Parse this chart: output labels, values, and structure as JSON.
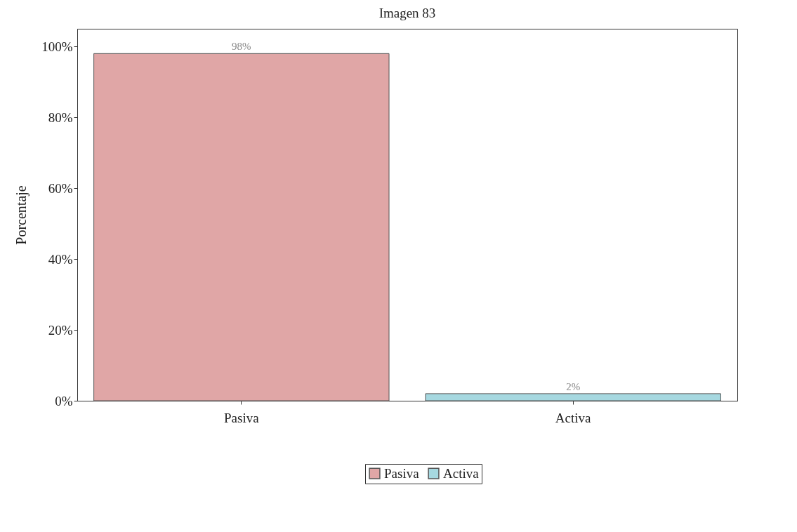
{
  "chart_data": {
    "type": "bar",
    "title": "Imagen 83",
    "ylabel": "Porcentaje",
    "categories": [
      "Pasiva",
      "Activa"
    ],
    "series": [
      {
        "name": "Pasiva",
        "color": "#e0a6a6",
        "values": [
          98,
          null
        ],
        "value_labels": [
          "98%",
          null
        ]
      },
      {
        "name": "Activa",
        "color": "#a6d8e0",
        "values": [
          null,
          2
        ],
        "value_labels": [
          null,
          "2%"
        ]
      }
    ],
    "ylim": [
      0,
      105
    ],
    "yticks": [
      {
        "value": 0,
        "label": "0%"
      },
      {
        "value": 20,
        "label": "20%"
      },
      {
        "value": 40,
        "label": "40%"
      },
      {
        "value": 60,
        "label": "60%"
      },
      {
        "value": 80,
        "label": "80%"
      },
      {
        "value": 100,
        "label": "100%"
      }
    ],
    "grid": false,
    "legend": "bottom"
  }
}
